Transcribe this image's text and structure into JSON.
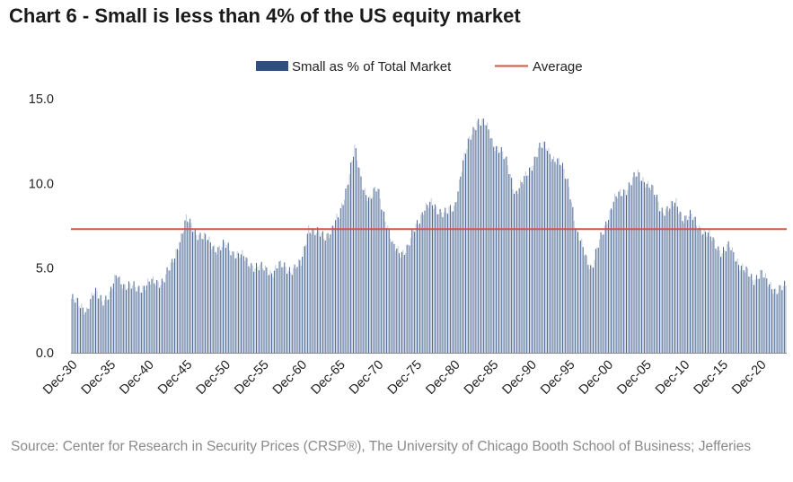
{
  "title": "Chart 6 - Small is less than 4% of the US equity market",
  "source": "Source: Center for Research in Security Prices (CRSP®), The University of Chicago Booth School of Business; Jefferies",
  "colors": {
    "bar": "#4a6590",
    "bar_light": "#b9c6d8",
    "average": "#d9543f",
    "legend_bar": "#2f4f7f"
  },
  "chart_data": {
    "type": "bar",
    "title": "Chart 6 - Small is less than 4% of the US equity market",
    "xlabel": "",
    "ylabel": "",
    "ylim": [
      0,
      15
    ],
    "yticks": [
      "0.0",
      "5.0",
      "10.0",
      "15.0"
    ],
    "grid": false,
    "legend_position": "top-center",
    "x_start_year": 1930,
    "x_end_year": 2023.5,
    "x_tick_labels": [
      "Dec-30",
      "Dec-35",
      "Dec-40",
      "Dec-45",
      "Dec-50",
      "Dec-55",
      "Dec-60",
      "Dec-65",
      "Dec-70",
      "Dec-75",
      "Dec-80",
      "Dec-85",
      "Dec-90",
      "Dec-95",
      "Dec-00",
      "Dec-05",
      "Dec-10",
      "Dec-15",
      "Dec-20"
    ],
    "series": [
      {
        "name": "Small as % of Total Market",
        "kind": "bar",
        "sampling": "annual approx, years 1930-2023",
        "years": [
          1930,
          1931,
          1932,
          1933,
          1934,
          1935,
          1936,
          1937,
          1938,
          1939,
          1940,
          1941,
          1942,
          1943,
          1944,
          1945,
          1946,
          1947,
          1948,
          1949,
          1950,
          1951,
          1952,
          1953,
          1954,
          1955,
          1956,
          1957,
          1958,
          1959,
          1960,
          1961,
          1962,
          1963,
          1964,
          1965,
          1966,
          1967,
          1968,
          1969,
          1970,
          1971,
          1972,
          1973,
          1974,
          1975,
          1976,
          1977,
          1978,
          1979,
          1980,
          1981,
          1982,
          1983,
          1984,
          1985,
          1986,
          1987,
          1988,
          1989,
          1990,
          1991,
          1992,
          1993,
          1994,
          1995,
          1996,
          1997,
          1998,
          1999,
          2000,
          2001,
          2002,
          2003,
          2004,
          2005,
          2006,
          2007,
          2008,
          2009,
          2010,
          2011,
          2012,
          2013,
          2014,
          2015,
          2016,
          2017,
          2018,
          2019,
          2020,
          2021,
          2022,
          2023
        ],
        "values": [
          3.2,
          2.8,
          2.6,
          3.5,
          3.2,
          3.4,
          4.6,
          4.0,
          3.8,
          3.9,
          4.0,
          4.2,
          4.3,
          5.0,
          6.5,
          7.8,
          7.3,
          6.9,
          6.5,
          6.2,
          6.3,
          6.0,
          5.8,
          5.3,
          5.2,
          4.9,
          4.8,
          5.1,
          5.0,
          5.0,
          5.2,
          7.5,
          7.0,
          6.9,
          7.3,
          8.0,
          10.0,
          12.0,
          10.0,
          9.0,
          9.7,
          8.0,
          6.2,
          6.0,
          6.2,
          7.5,
          8.5,
          8.7,
          8.5,
          8.2,
          8.5,
          11.0,
          12.5,
          13.8,
          13.5,
          12.5,
          12.0,
          11.0,
          9.5,
          10.0,
          11.0,
          12.0,
          12.2,
          11.5,
          11.0,
          10.0,
          7.0,
          6.0,
          5.0,
          6.5,
          8.0,
          9.0,
          9.5,
          10.0,
          10.5,
          10.2,
          9.5,
          8.5,
          8.5,
          8.8,
          8.0,
          8.0,
          7.5,
          7.0,
          6.5,
          6.0,
          6.2,
          5.5,
          4.8,
          4.3,
          4.8,
          4.0,
          3.8,
          3.8
        ]
      },
      {
        "name": "Average",
        "kind": "line",
        "value": 7.3
      }
    ]
  }
}
